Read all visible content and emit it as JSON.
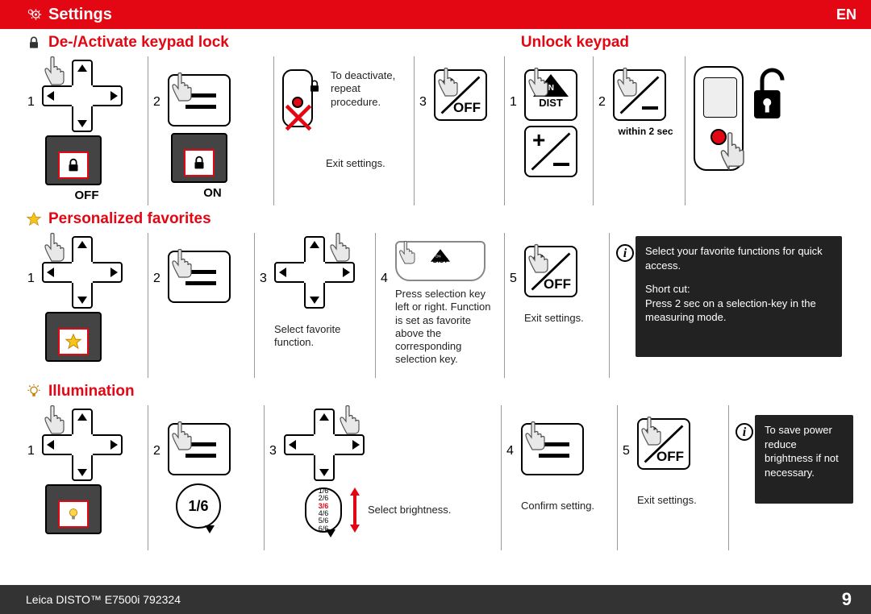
{
  "header": {
    "title": "Settings",
    "lang": "EN"
  },
  "sections": {
    "keypad_lock": {
      "title": "De-/Activate keypad lock"
    },
    "unlock_keypad": {
      "title": "Unlock keypad"
    },
    "favorites": {
      "title": "Personalized favorites"
    },
    "illumination": {
      "title": "Illumination"
    }
  },
  "row1": {
    "p1": {
      "num": "1",
      "off_label": "OFF"
    },
    "p2": {
      "num": "2",
      "on_label": "ON"
    },
    "p3": {
      "deactivate": "To deactivate, repeat procedure.",
      "exit": "Exit settings."
    },
    "p4": {
      "num": "3"
    },
    "p5": {
      "num": "1"
    },
    "p6": {
      "num": "2",
      "within": "within 2 sec"
    }
  },
  "row2": {
    "p1": {
      "num": "1"
    },
    "p2": {
      "num": "2"
    },
    "p3": {
      "num": "3",
      "caption": "Select favorite function."
    },
    "p4": {
      "num": "4",
      "caption": "Press selection key left or right. Function is set as favorite above the corresponding selection key."
    },
    "p5": {
      "num": "5",
      "caption": "Exit settings."
    },
    "info": {
      "line1": "Select your favorite functions for quick access.",
      "short": "Short cut:",
      "line2": "Press 2 sec on a selection-key in the measuring mode."
    }
  },
  "row3": {
    "p1": {
      "num": "1"
    },
    "p2": {
      "num": "2",
      "bubble": "1/6"
    },
    "p3": {
      "num": "3",
      "caption": "Select brightness.",
      "levels": [
        "1/6",
        "2/6",
        "3/6",
        "4/6",
        "5/6",
        "6/6"
      ],
      "highlight": 2
    },
    "p4": {
      "num": "4",
      "caption": "Confirm setting."
    },
    "p5": {
      "num": "5",
      "caption": "Exit settings."
    },
    "info": {
      "text": "To save power reduce brightness if not necessary."
    }
  },
  "footer": {
    "product": "Leica DISTO™ E7500i 792324",
    "page": "9"
  },
  "colors": {
    "brand_red": "#e30613",
    "dark_bg": "#333333",
    "info_bg": "#222222"
  }
}
